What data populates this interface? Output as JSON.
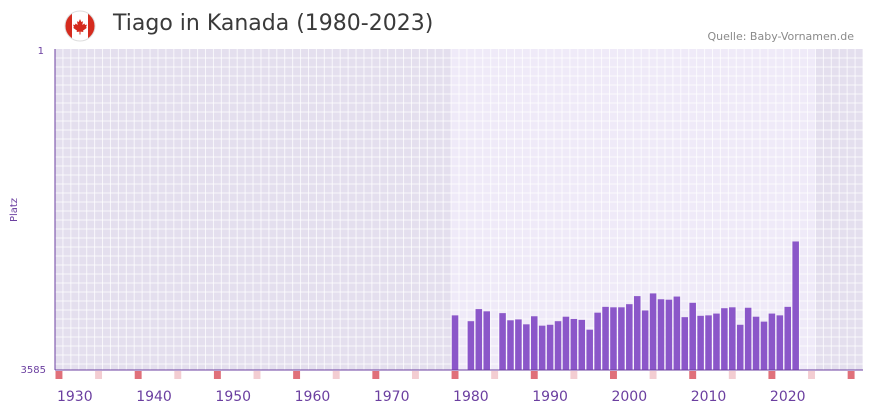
{
  "header": {
    "title": "Tiago in Kanada (1980-2023)",
    "source": "Quelle: Baby-Vornamen.de",
    "flag_icon": "canada-flag-icon"
  },
  "colors": {
    "bar": "#8b57c9",
    "axis": "#6b3fa0",
    "bg_outside": "#e4dfee",
    "bg_inside": "#efeaf8",
    "grid": "#ffffff",
    "decade_marker": "#e0707a",
    "half_decade_marker": "#f3cdd2"
  },
  "chart_data": {
    "type": "bar",
    "title": "Tiago in Kanada (1980-2023)",
    "ylabel": "Platz",
    "y_top_label": "1",
    "y_bottom_label": "3585",
    "ylim": [
      3585,
      1
    ],
    "xlim": [
      1928,
      2029
    ],
    "highlight_range": [
      1978,
      2023
    ],
    "x_ticks": [
      "1930",
      "1940",
      "1950",
      "1960",
      "1970",
      "1980",
      "1990",
      "2000",
      "2010",
      "2020"
    ],
    "x_tick_years": [
      1930,
      1940,
      1950,
      1960,
      1970,
      1980,
      1990,
      2000,
      2010,
      2020
    ],
    "years": [
      1978,
      1980,
      1981,
      1982,
      1984,
      1985,
      1986,
      1987,
      1988,
      1989,
      1990,
      1991,
      1992,
      1993,
      1994,
      1995,
      1996,
      1997,
      1998,
      1999,
      2000,
      2001,
      2002,
      2003,
      2004,
      2005,
      2006,
      2007,
      2008,
      2009,
      2010,
      2011,
      2012,
      2013,
      2014,
      2015,
      2016,
      2017,
      2018,
      2019,
      2020,
      2021,
      2022
    ],
    "values": [
      2975,
      3040,
      2905,
      2930,
      2950,
      3030,
      3020,
      3075,
      2985,
      3090,
      3080,
      3040,
      2990,
      3015,
      3025,
      3135,
      2945,
      2880,
      2885,
      2885,
      2850,
      2760,
      2920,
      2730,
      2795,
      2800,
      2765,
      2995,
      2835,
      2980,
      2975,
      2955,
      2895,
      2885,
      3080,
      2890,
      2990,
      3045,
      2955,
      2975,
      2880,
      2150,
      0
    ]
  }
}
